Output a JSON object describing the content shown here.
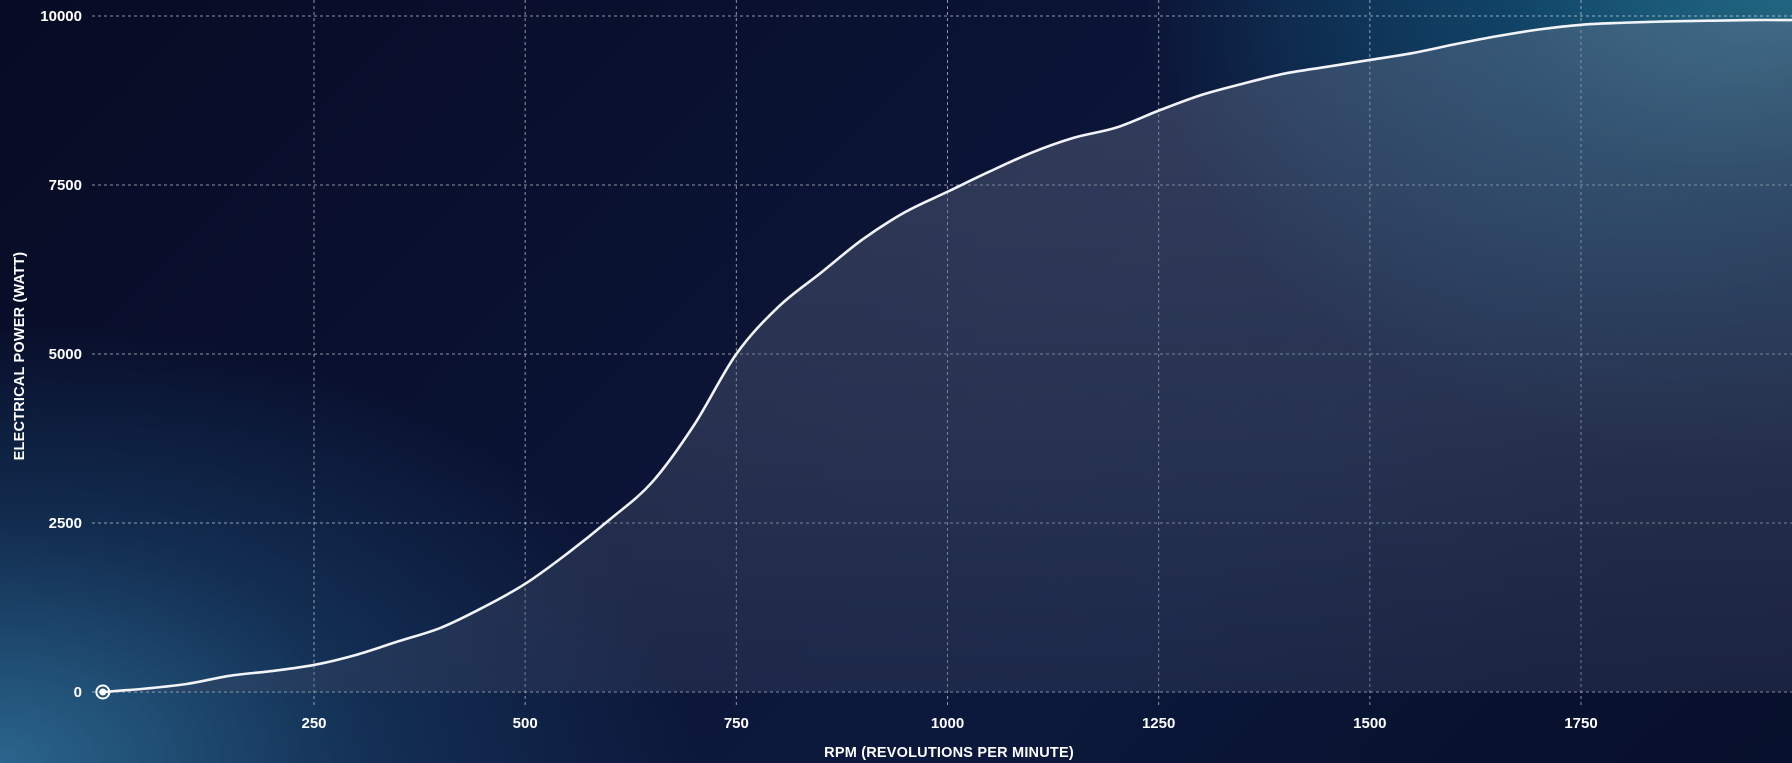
{
  "chart_data": {
    "type": "area",
    "title": "",
    "xlabel": "RPM (REVOLUTIONS PER MINUTE)",
    "ylabel": "ELECTRICAL POWER (WATT)",
    "xlim": [
      0,
      2000
    ],
    "ylim": [
      0,
      10000
    ],
    "x_ticks": [
      250,
      500,
      750,
      1000,
      1250,
      1500,
      1750
    ],
    "y_ticks": [
      0,
      2500,
      5000,
      7500,
      10000
    ],
    "grid": true,
    "legend": "none",
    "colors": {
      "line": "#f2f4f8",
      "area_top": "#55607a",
      "grid": "#ffffff"
    },
    "series": [
      {
        "x": [
          0,
          50,
          100,
          150,
          200,
          250,
          300,
          350,
          400,
          450,
          500,
          550,
          600,
          650,
          700,
          750,
          800,
          850,
          900,
          950,
          1000,
          1050,
          1100,
          1150,
          1200,
          1250,
          1300,
          1350,
          1400,
          1450,
          1500,
          1550,
          1600,
          1650,
          1700,
          1750,
          1800,
          1850,
          1900,
          1950,
          2000
        ],
        "y": [
          0,
          50,
          120,
          240,
          310,
          400,
          550,
          750,
          950,
          1250,
          1600,
          2050,
          2550,
          3100,
          3950,
          5000,
          5700,
          6200,
          6700,
          7100,
          7400,
          7700,
          7980,
          8200,
          8350,
          8600,
          8830,
          9000,
          9150,
          9250,
          9350,
          9450,
          9580,
          9700,
          9800,
          9870,
          9900,
          9920,
          9930,
          9940,
          9940
        ]
      }
    ]
  }
}
